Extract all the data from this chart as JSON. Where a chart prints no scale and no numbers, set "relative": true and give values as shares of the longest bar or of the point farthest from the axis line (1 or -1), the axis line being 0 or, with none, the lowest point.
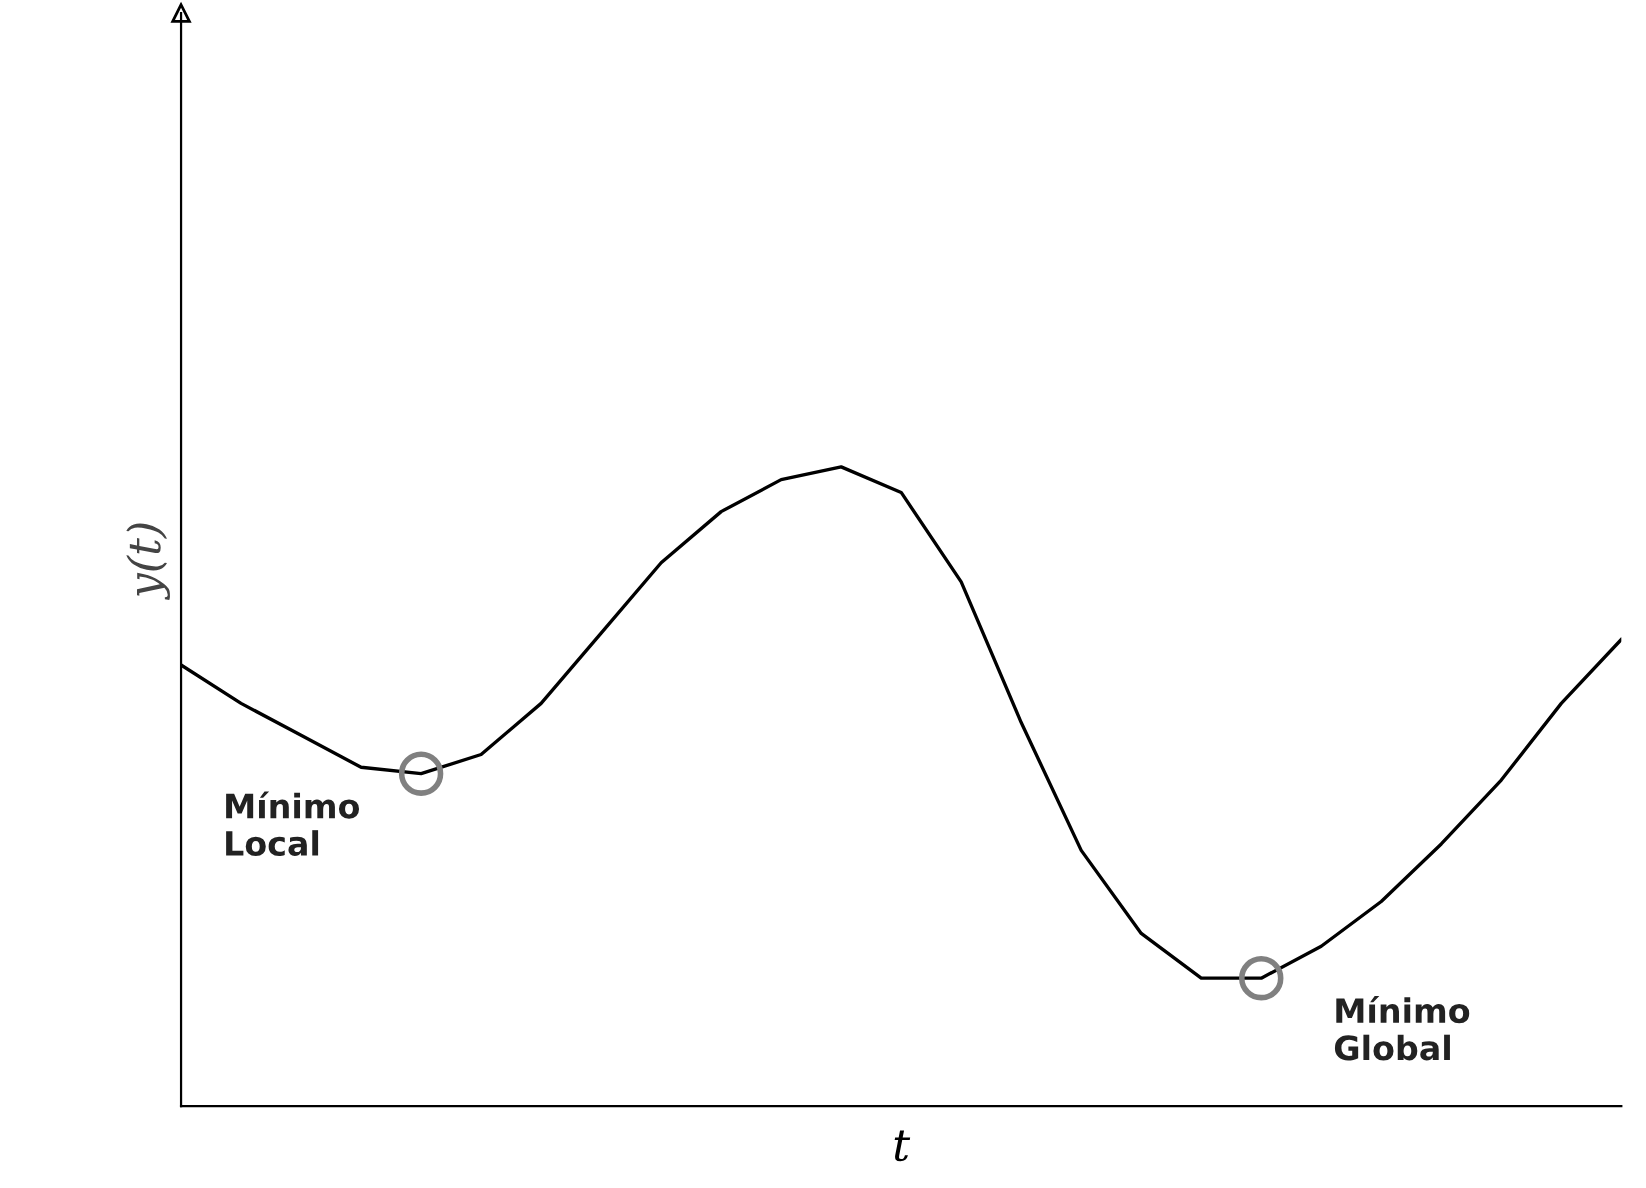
{
  "chart_data": {
    "type": "line",
    "relative": true,
    "xlabel": "t",
    "ylabel": "y(t)",
    "categories": [
      null,
      null,
      null,
      null,
      null,
      null,
      null,
      null,
      null,
      null,
      null,
      null,
      null,
      null,
      null,
      null,
      null,
      null,
      null,
      null,
      null,
      null,
      null,
      null,
      null
    ],
    "series": [
      {
        "color": "#000000",
        "values": [
          0.69,
          0.63,
          0.58,
          0.53,
          0.52,
          0.55,
          0.63,
          0.74,
          0.85,
          0.93,
          0.98,
          1,
          0.96,
          0.82,
          0.6,
          0.4,
          0.27,
          0.2,
          0.2,
          0.25,
          0.32,
          0.41,
          0.51,
          0.63,
          0.73
        ]
      }
    ],
    "annotations": [
      "Mínimo\nLocal",
      "Mínimo\nGlobal"
    ],
    "grid": false,
    "legend": false,
    "marker": "none",
    "line_style": "solid"
  }
}
